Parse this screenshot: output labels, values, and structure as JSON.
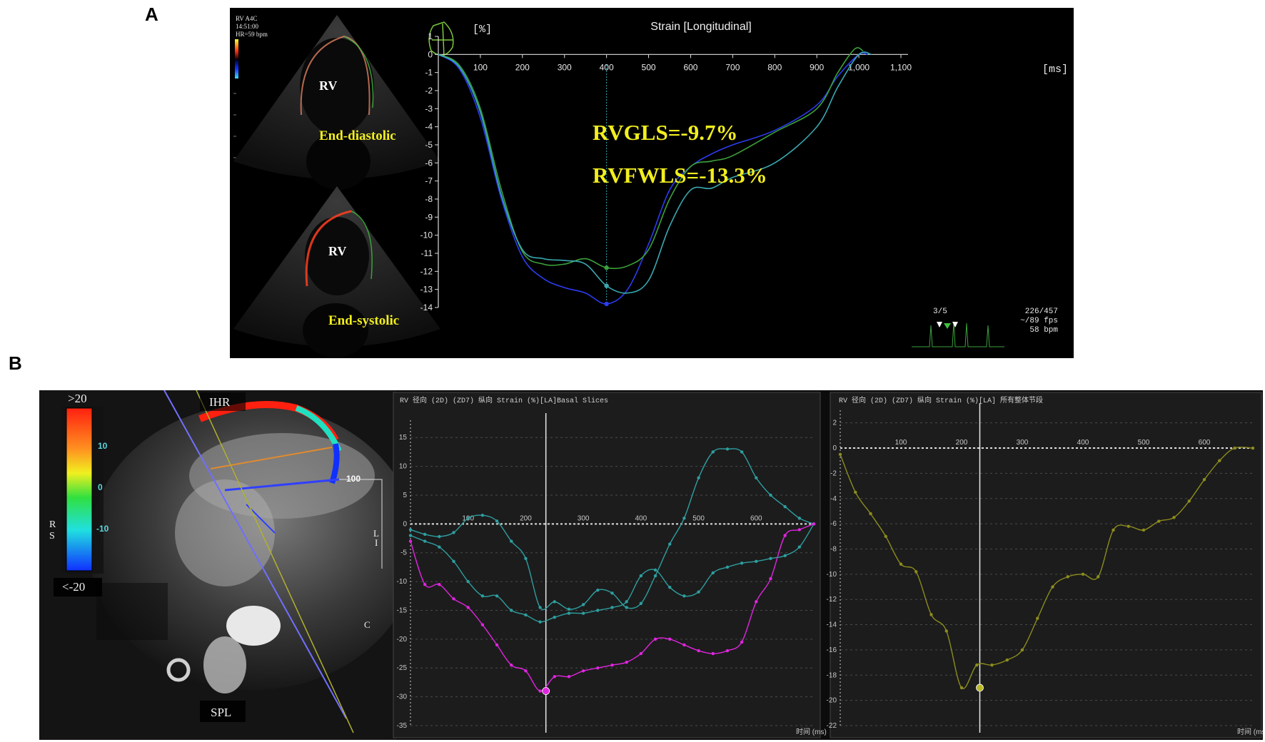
{
  "figure": {
    "label_a": "A",
    "label_b": "B"
  },
  "panel_a": {
    "echo": {
      "info_lines": [
        "RV A4C",
        "14:51:00",
        "HR=59 bpm"
      ],
      "top_chamber_label": "RV",
      "top_phase_label": "End-diastolic",
      "bottom_chamber_label": "RV",
      "bottom_phase_label": "End-systolic"
    },
    "status": {
      "beat": "3/5",
      "frame": "226/457",
      "fps": "~/89 fps",
      "bpm": "58 bpm"
    },
    "colors": {
      "background": "#000000",
      "annotation": "#f2ee1e",
      "curve_blue": "#2c3cf0",
      "curve_green": "#3ca03c",
      "curve_teal": "#3aa8b0"
    }
  },
  "panel_b": {
    "mri": {
      "top_label": "IHR",
      "bottom_label": "SPL",
      "scale_top": ">20",
      "scale_bottom": "<-20",
      "scale_ticks": [
        "10",
        "0",
        "-10"
      ],
      "scale_side": "R\nS",
      "side_value": "100",
      "side_letters": [
        "L",
        "I",
        "C"
      ]
    },
    "colors": {
      "curve_teal": "#2e9ea0",
      "curve_magenta": "#e025e0",
      "curve_olive": "#8c8c1e",
      "grid": "#555555"
    }
  },
  "chart_data": [
    {
      "type": "line",
      "title": "Strain [Longitudinal]",
      "ylabel": "[%]",
      "xlabel": "[ms]",
      "x_ticks": [
        "100",
        "200",
        "300",
        "400",
        "500",
        "600",
        "700",
        "800",
        "900",
        "1,000",
        "1,100"
      ],
      "y_ticks": [
        "1",
        "0",
        "-1",
        "-2",
        "-3",
        "-4",
        "-5",
        "-6",
        "-7",
        "-8",
        "-9",
        "-10",
        "-11",
        "-12",
        "-13",
        "-14"
      ],
      "xlim": [
        0,
        1100
      ],
      "ylim": [
        -14,
        1
      ],
      "marker_x": 400,
      "annotations": [
        "RVGLS=-9.7%",
        "RVFWLS=-13.3%"
      ],
      "series": [
        {
          "color": "#2c3cf0",
          "x": [
            0,
            50,
            100,
            150,
            200,
            250,
            300,
            350,
            400,
            450,
            500,
            550,
            600,
            650,
            700,
            800,
            900,
            950,
            1000,
            1020
          ],
          "y": [
            0,
            -0.8,
            -3.5,
            -8.0,
            -11.2,
            -12.4,
            -12.9,
            -13.2,
            -13.8,
            -13.0,
            -10.5,
            -7.5,
            -6.2,
            -5.5,
            -5.0,
            -4.2,
            -2.8,
            -1.2,
            0,
            0
          ]
        },
        {
          "color": "#3ca03c",
          "x": [
            0,
            50,
            100,
            150,
            200,
            250,
            300,
            350,
            400,
            450,
            500,
            550,
            600,
            650,
            700,
            800,
            900,
            950,
            990,
            1010
          ],
          "y": [
            0,
            -0.6,
            -3.0,
            -7.5,
            -10.9,
            -11.6,
            -11.6,
            -11.3,
            -11.8,
            -11.7,
            -10.8,
            -8.0,
            -6.2,
            -5.9,
            -5.6,
            -4.3,
            -3.0,
            -1.0,
            0.3,
            0.2
          ]
        },
        {
          "color": "#3aa8b0",
          "x": [
            0,
            50,
            100,
            150,
            200,
            250,
            300,
            350,
            400,
            450,
            500,
            550,
            600,
            650,
            700,
            800,
            900,
            950,
            1000,
            1030
          ],
          "y": [
            0,
            -0.7,
            -3.2,
            -7.8,
            -10.8,
            -11.3,
            -11.4,
            -11.6,
            -12.8,
            -13.2,
            -12.5,
            -9.5,
            -7.5,
            -7.4,
            -6.8,
            -6.0,
            -4.0,
            -1.8,
            0,
            0
          ]
        }
      ],
      "highlight_points": [
        {
          "x": 400,
          "y": -11.8,
          "color": "#3ca03c"
        },
        {
          "x": 400,
          "y": -12.8,
          "color": "#3aa8b0"
        },
        {
          "x": 400,
          "y": -13.8,
          "color": "#2c3cf0"
        }
      ]
    },
    {
      "type": "line",
      "title": "RV 径向 (2D) (ZD7) 纵向 Strain (%)[LA]Basal Slices",
      "xlabel": "时间 (ms)",
      "x_ticks": [
        "100",
        "200",
        "300",
        "400",
        "500",
        "600"
      ],
      "y_ticks": [
        "15",
        "10",
        "5",
        "0",
        "-5",
        "-10",
        "-15",
        "-20",
        "-25",
        "-30",
        "-35"
      ],
      "xlim": [
        0,
        700
      ],
      "ylim": [
        -35,
        18
      ],
      "marker_x": 235,
      "series": [
        {
          "color": "#2e9ea0",
          "x": [
            0,
            25,
            50,
            75,
            100,
            125,
            150,
            175,
            200,
            225,
            250,
            275,
            300,
            325,
            350,
            375,
            400,
            425,
            450,
            475,
            500,
            525,
            550,
            575,
            600,
            625,
            650,
            675,
            700
          ],
          "y": [
            -1,
            -1.8,
            -2.2,
            -1.5,
            1.0,
            1.5,
            0.5,
            -3.0,
            -6.0,
            -14.5,
            -13.5,
            -14.8,
            -14.0,
            -11.5,
            -12.0,
            -14.5,
            -13.8,
            -9.0,
            -3.5,
            1.0,
            8.0,
            12.5,
            13.0,
            12.5,
            8.0,
            5.0,
            3.0,
            1.0,
            0
          ]
        },
        {
          "color": "#2e9ea0",
          "x": [
            0,
            25,
            50,
            75,
            100,
            125,
            150,
            175,
            200,
            225,
            250,
            275,
            300,
            325,
            350,
            375,
            400,
            425,
            450,
            475,
            500,
            525,
            550,
            575,
            600,
            625,
            650,
            675,
            700
          ],
          "y": [
            -2,
            -3.0,
            -4.0,
            -6.5,
            -10.0,
            -12.5,
            -12.5,
            -15.0,
            -15.8,
            -17.0,
            -16.2,
            -15.5,
            -15.5,
            -15.0,
            -14.5,
            -13.5,
            -9.0,
            -8.0,
            -11.0,
            -12.5,
            -11.8,
            -8.5,
            -7.5,
            -6.8,
            -6.5,
            -6.0,
            -5.5,
            -4.0,
            0
          ]
        },
        {
          "color": "#e025e0",
          "x": [
            0,
            25,
            50,
            75,
            100,
            125,
            150,
            175,
            200,
            225,
            250,
            275,
            300,
            325,
            350,
            375,
            400,
            425,
            450,
            475,
            500,
            525,
            550,
            575,
            600,
            625,
            650,
            675,
            700
          ],
          "y": [
            -3,
            -10.5,
            -10.5,
            -13.0,
            -14.5,
            -17.5,
            -21.0,
            -24.5,
            -25.5,
            -29.0,
            -26.5,
            -26.5,
            -25.5,
            -25.0,
            -24.5,
            -24.0,
            -22.5,
            -20.0,
            -20.0,
            -21.0,
            -22.0,
            -22.5,
            -22.0,
            -20.5,
            -13.5,
            -9.5,
            -2.0,
            -1.0,
            0
          ]
        }
      ],
      "highlight_points": [
        {
          "x": 235,
          "y": -29.0,
          "color": "#e025e0"
        }
      ]
    },
    {
      "type": "line",
      "title": "RV 径向 (2D) (ZD7) 纵向 Strain (%)[LA] 所有整体节段",
      "xlabel": "时间 (ms)",
      "x_ticks": [
        "100",
        "200",
        "300",
        "400",
        "500",
        "600"
      ],
      "y_ticks": [
        "2",
        "0",
        "-2",
        "-4",
        "-6",
        "-8",
        "-10",
        "-12",
        "-14",
        "-16",
        "-18",
        "-20",
        "-22"
      ],
      "xlim": [
        0,
        680
      ],
      "ylim": [
        -22,
        3
      ],
      "marker_x": 230,
      "series": [
        {
          "color": "#8c8c1e",
          "x": [
            0,
            25,
            50,
            75,
            100,
            125,
            150,
            175,
            200,
            225,
            250,
            275,
            300,
            325,
            350,
            375,
            400,
            425,
            450,
            475,
            500,
            525,
            550,
            575,
            600,
            625,
            650,
            680
          ],
          "y": [
            -0.5,
            -3.5,
            -5.2,
            -7.0,
            -9.2,
            -9.8,
            -13.2,
            -14.5,
            -19.0,
            -17.2,
            -17.2,
            -16.8,
            -16.0,
            -13.5,
            -11.0,
            -10.2,
            -10.0,
            -10.2,
            -6.5,
            -6.2,
            -6.5,
            -5.8,
            -5.5,
            -4.2,
            -2.5,
            -1.0,
            0,
            0
          ]
        }
      ],
      "highlight_points": [
        {
          "x": 230,
          "y": -19.0,
          "color": "#b8b82a"
        }
      ]
    }
  ]
}
